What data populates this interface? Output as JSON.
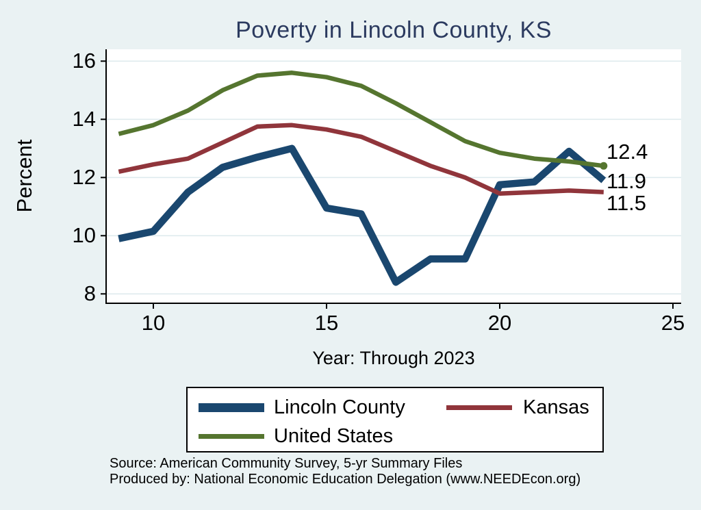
{
  "chart_data": {
    "type": "line",
    "title": "Poverty in Lincoln County, KS",
    "xlabel": "Year: Through 2023",
    "ylabel": "Percent",
    "x": [
      9,
      10,
      11,
      12,
      13,
      14,
      15,
      16,
      17,
      18,
      19,
      20,
      21,
      22,
      23
    ],
    "x_years": [
      2009,
      2010,
      2011,
      2012,
      2013,
      2014,
      2015,
      2016,
      2017,
      2018,
      2019,
      2020,
      2021,
      2022,
      2023
    ],
    "x_tick_labels": [
      "10",
      "15",
      "20",
      "25"
    ],
    "x_tick_values": [
      10,
      15,
      20,
      25
    ],
    "y_tick_labels": [
      "16",
      "14",
      "12",
      "10",
      "8"
    ],
    "y_tick_values": [
      16,
      14,
      12,
      10,
      8
    ],
    "xlim": [
      8.6,
      25.2
    ],
    "ylim": [
      7.7,
      16.4
    ],
    "grid": true,
    "legend_position": "bottom",
    "series": [
      {
        "name": "Lincoln County",
        "color": "#1a476f",
        "end_label": "11.9",
        "values": [
          9.9,
          10.15,
          11.5,
          12.35,
          12.7,
          13.0,
          10.95,
          10.75,
          8.4,
          9.2,
          9.2,
          11.75,
          11.85,
          12.9,
          11.9
        ]
      },
      {
        "name": "Kansas",
        "color": "#90353b",
        "end_label": "11.5",
        "values": [
          12.2,
          12.45,
          12.65,
          13.2,
          13.75,
          13.8,
          13.65,
          13.4,
          12.9,
          12.4,
          12.0,
          11.45,
          11.5,
          11.55,
          11.5
        ]
      },
      {
        "name": "United States",
        "color": "#55752f",
        "end_label": "12.4",
        "end_marker": true,
        "values": [
          13.5,
          13.8,
          14.3,
          15.0,
          15.5,
          15.6,
          15.45,
          15.15,
          14.55,
          13.9,
          13.25,
          12.85,
          12.65,
          12.55,
          12.4
        ]
      }
    ]
  },
  "colors": {
    "background": "#eaf2f3",
    "plot_background": "#ffffff",
    "gridline": "#dfebee",
    "axis": "#000000",
    "title_text": "#2b3a5f",
    "label_text": "#000000"
  },
  "source": {
    "line1": "Source: American Community Survey, 5-yr Summary Files",
    "line2": "Produced by: National Economic Education Delegation (www.NEEDEcon.org)"
  }
}
